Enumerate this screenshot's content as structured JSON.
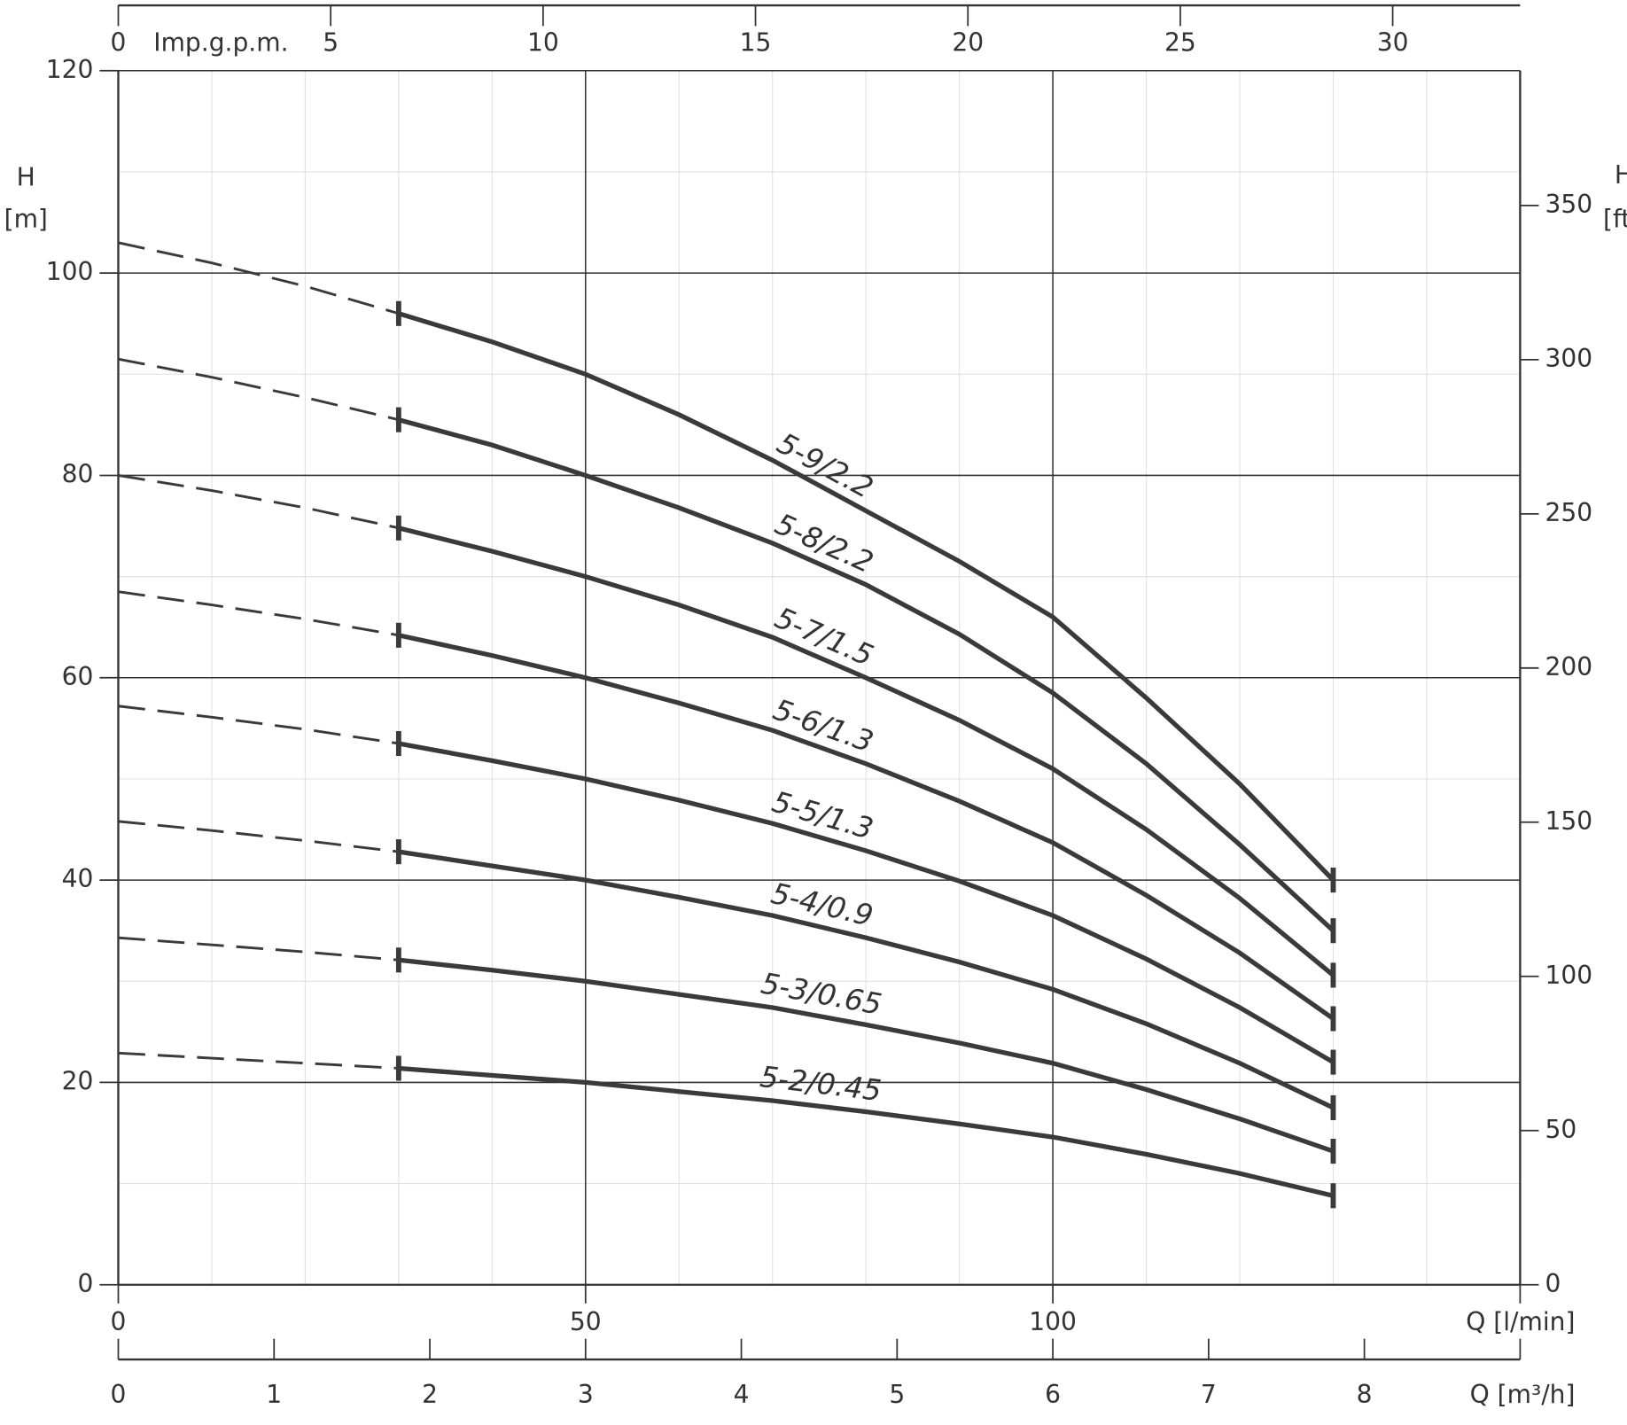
{
  "chart_data": {
    "type": "line",
    "x": [
      0,
      10,
      20,
      30,
      40,
      50,
      60,
      70,
      80,
      90,
      100,
      110,
      120,
      130
    ],
    "series": [
      {
        "name": "5-9/2.2",
        "color": "#3a3a3a",
        "values": [
          103,
          101,
          98.7,
          96,
          93.2,
          90,
          86,
          81.5,
          76.5,
          71.5,
          66,
          58,
          49.5,
          40
        ]
      },
      {
        "name": "5-8/2.2",
        "color": "#3a3a3a",
        "values": [
          91.5,
          89.7,
          87.7,
          85.5,
          83,
          80,
          76.8,
          73.3,
          69.2,
          64.3,
          58.5,
          51.5,
          43.5,
          35
        ]
      },
      {
        "name": "5-7/1.5",
        "color": "#3a3a3a",
        "values": [
          80,
          78.5,
          76.8,
          74.8,
          72.5,
          70,
          67.2,
          64,
          60,
          55.8,
          51,
          45,
          38.2,
          30.6
        ]
      },
      {
        "name": "5-6/1.3",
        "color": "#3a3a3a",
        "values": [
          68.5,
          67.2,
          65.8,
          64.2,
          62.2,
          60,
          57.5,
          54.8,
          51.5,
          47.8,
          43.7,
          38.5,
          32.8,
          26.3
        ]
      },
      {
        "name": "5-5/1.3",
        "color": "#3a3a3a",
        "values": [
          57.2,
          56.1,
          54.9,
          53.5,
          51.8,
          50,
          47.9,
          45.6,
          42.9,
          39.9,
          36.5,
          32.2,
          27.4,
          22
        ]
      },
      {
        "name": "5-4/0.9",
        "color": "#3a3a3a",
        "values": [
          45.8,
          44.9,
          43.9,
          42.8,
          41.4,
          40,
          38.3,
          36.5,
          34.3,
          31.9,
          29.2,
          25.8,
          21.9,
          17.5
        ]
      },
      {
        "name": "5-3/0.65",
        "color": "#3a3a3a",
        "values": [
          34.3,
          33.6,
          32.9,
          32.1,
          31.1,
          30,
          28.7,
          27.4,
          25.7,
          23.9,
          21.9,
          19.3,
          16.4,
          13.2
        ]
      },
      {
        "name": "5-2/0.45",
        "color": "#3a3a3a",
        "values": [
          22.9,
          22.4,
          21.9,
          21.4,
          20.7,
          20,
          19.1,
          18.2,
          17.1,
          15.9,
          14.6,
          12.9,
          11,
          8.8
        ]
      }
    ],
    "dash_range": [
      0,
      30
    ],
    "xlabel": "Q [l/min]",
    "xlim": [
      0,
      150
    ],
    "xticks": [
      0,
      50,
      100
    ],
    "minor_xticks": [
      10,
      20,
      30,
      40,
      60,
      70,
      80,
      90,
      110,
      120,
      130,
      140
    ],
    "ylabel": {
      "symbol": "H",
      "unit": "[m]"
    },
    "ylim": [
      0,
      120
    ],
    "yticks": [
      0,
      20,
      40,
      60,
      80,
      100,
      120
    ],
    "minor_yticks": [
      10,
      30,
      50,
      70,
      90,
      110
    ],
    "y2label": {
      "symbol": "H",
      "unit": "[ft]"
    },
    "y2lim": [
      0,
      393.7
    ],
    "y2ticks": [
      0,
      50,
      100,
      150,
      200,
      250,
      300,
      350
    ],
    "top_axis": {
      "label": "Imp.g.p.m.",
      "lim": [
        0,
        33
      ],
      "ticks": [
        0,
        5,
        10,
        15,
        20,
        25,
        30
      ]
    },
    "bottom_axis": {
      "label": "Q [m³/h]",
      "lim": [
        0,
        9
      ],
      "ticks": [
        0,
        1,
        2,
        3,
        4,
        5,
        6,
        7,
        8
      ]
    },
    "grid": true
  }
}
